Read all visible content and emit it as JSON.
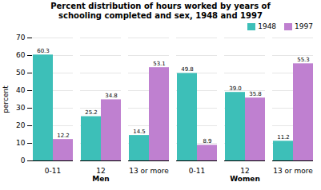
{
  "chart_data": {
    "type": "bar",
    "title": "Percent distribution of hours worked by years of\nschooling completed and sex, 1948 and 1997",
    "ylabel": "percent",
    "categories": [
      "0-11",
      "12",
      "13 or more",
      "0-11",
      "12",
      "13 or more"
    ],
    "category_groups": [
      "Men",
      "Men",
      "Men",
      "Women",
      "Women",
      "Women"
    ],
    "series": [
      {
        "name": "1948",
        "color": "#3dbfb8",
        "values": [
          60.3,
          25.2,
          14.5,
          49.8,
          39.0,
          11.2
        ],
        "value_labels": [
          "60.3",
          "25.2",
          "14.5",
          "49.8",
          "39.0",
          "11.2"
        ]
      },
      {
        "name": "1997",
        "color": "#bf80d0",
        "values": [
          12.2,
          34.8,
          53.1,
          8.9,
          35.8,
          55.3
        ],
        "value_labels": [
          "12.2",
          "34.8",
          "53.1",
          "8.9",
          "35.8",
          "55.3"
        ]
      }
    ],
    "ylim": [
      0,
      70
    ],
    "yticks": [
      0,
      10,
      20,
      30,
      40,
      50,
      60,
      70
    ],
    "grid": true,
    "legend": "upper right",
    "data_labels": true
  }
}
